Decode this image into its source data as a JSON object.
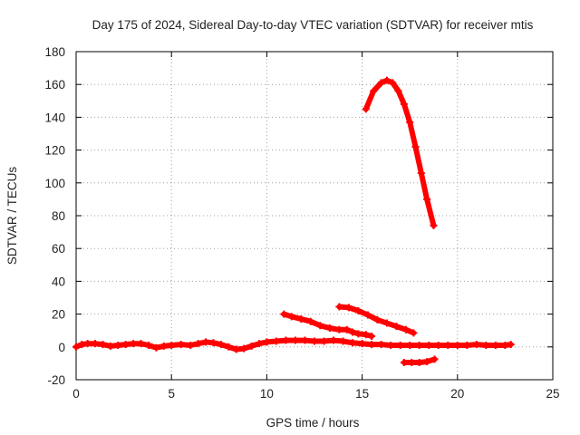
{
  "chart_data": {
    "type": "scatter",
    "title": "Day 175 of 2024, Sidereal Day-to-day VTEC variation (SDTVAR) for receiver mtis",
    "xlabel": "GPS time / hours",
    "ylabel": "SDTVAR / TECUs",
    "xlim": [
      0,
      25
    ],
    "ylim": [
      -20,
      180
    ],
    "x_ticks": [
      "0",
      "5",
      "10",
      "15",
      "20",
      "25"
    ],
    "y_ticks": [
      "-20",
      "0",
      "20",
      "40",
      "60",
      "80",
      "100",
      "120",
      "140",
      "160",
      "180"
    ],
    "grid": true,
    "colors": {
      "series": "#ff0000",
      "grid": "#a0a0a0",
      "axis": "#000000"
    },
    "series": [
      {
        "points": [
          [
            0.0,
            0.0
          ],
          [
            0.3,
            1.5
          ],
          [
            0.6,
            2.0
          ],
          [
            1.0,
            2.0
          ],
          [
            1.4,
            1.5
          ],
          [
            1.8,
            0.5
          ],
          [
            2.2,
            1.0
          ],
          [
            2.6,
            1.5
          ],
          [
            3.0,
            2.0
          ],
          [
            3.4,
            2.0
          ],
          [
            3.8,
            1.0
          ],
          [
            4.2,
            -0.5
          ],
          [
            4.6,
            0.5
          ],
          [
            5.0,
            1.0
          ],
          [
            5.5,
            1.5
          ],
          [
            6.0,
            1.0
          ],
          [
            6.4,
            2.0
          ],
          [
            6.8,
            3.0
          ],
          [
            7.2,
            2.5
          ],
          [
            7.6,
            1.5
          ],
          [
            8.0,
            0.0
          ],
          [
            8.4,
            -1.5
          ],
          [
            8.8,
            -1.0
          ],
          [
            9.2,
            0.5
          ],
          [
            9.6,
            2.0
          ],
          [
            10.0,
            3.0
          ],
          [
            10.5,
            3.5
          ],
          [
            11.0,
            4.0
          ],
          [
            11.5,
            4.0
          ],
          [
            12.0,
            4.0
          ],
          [
            12.5,
            3.5
          ],
          [
            13.0,
            3.5
          ],
          [
            13.5,
            4.0
          ],
          [
            14.0,
            3.5
          ],
          [
            14.5,
            2.5
          ],
          [
            15.0,
            2.0
          ],
          [
            15.5,
            1.5
          ],
          [
            16.0,
            1.5
          ],
          [
            16.5,
            1.0
          ],
          [
            17.0,
            1.0
          ],
          [
            17.5,
            1.0
          ],
          [
            18.0,
            1.0
          ],
          [
            18.5,
            1.0
          ],
          [
            19.0,
            1.0
          ],
          [
            19.5,
            1.0
          ],
          [
            20.0,
            1.0
          ],
          [
            20.5,
            1.0
          ],
          [
            21.0,
            1.5
          ],
          [
            21.5,
            1.0
          ],
          [
            22.0,
            1.0
          ],
          [
            22.5,
            1.0
          ],
          [
            22.8,
            1.5
          ]
        ]
      },
      {
        "points": [
          [
            10.9,
            20.0
          ],
          [
            11.3,
            18.5
          ],
          [
            11.8,
            17.0
          ],
          [
            12.3,
            15.5
          ],
          [
            12.8,
            13.0
          ],
          [
            13.3,
            11.5
          ],
          [
            13.8,
            10.5
          ],
          [
            14.2,
            10.5
          ],
          [
            14.5,
            9.0
          ],
          [
            14.8,
            8.0
          ],
          [
            15.2,
            7.5
          ],
          [
            15.5,
            6.5
          ]
        ]
      },
      {
        "points": [
          [
            13.8,
            24.5
          ],
          [
            14.3,
            24.0
          ],
          [
            14.8,
            22.0
          ],
          [
            15.3,
            19.5
          ],
          [
            15.8,
            16.5
          ],
          [
            16.3,
            14.5
          ],
          [
            16.8,
            12.5
          ],
          [
            17.3,
            10.5
          ],
          [
            17.7,
            8.5
          ]
        ]
      },
      {
        "points": [
          [
            15.2,
            145.0
          ],
          [
            15.6,
            156.0
          ],
          [
            16.0,
            161.0
          ],
          [
            16.3,
            162.5
          ],
          [
            16.6,
            161.0
          ],
          [
            16.9,
            156.0
          ],
          [
            17.2,
            148.0
          ],
          [
            17.5,
            137.0
          ],
          [
            17.8,
            122.0
          ],
          [
            18.1,
            106.0
          ],
          [
            18.4,
            90.0
          ],
          [
            18.75,
            74.0
          ]
        ]
      },
      {
        "points": [
          [
            17.2,
            -9.5
          ],
          [
            17.6,
            -9.5
          ],
          [
            18.0,
            -9.5
          ],
          [
            18.4,
            -9.0
          ],
          [
            18.8,
            -7.5
          ]
        ]
      }
    ]
  }
}
